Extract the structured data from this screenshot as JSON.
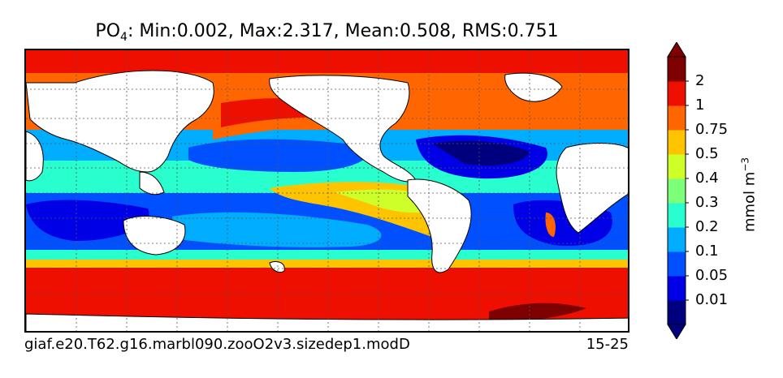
{
  "title": {
    "variable": "PO",
    "subscript": "4",
    "stats": ": Min:0.002, Max:2.317, Mean:0.508, RMS:0.751"
  },
  "footer": {
    "case_name": "giaf.e20.T62.g16.marbl090.zooO2v3.sizedep1.modD",
    "year_range": "15-25"
  },
  "colorbar": {
    "units_base": "mmol m",
    "units_exp": "−3",
    "tick_labels": [
      "0.01",
      "0.05",
      "0.1",
      "0.2",
      "0.3",
      "0.4",
      "0.5",
      "0.75",
      "1",
      "2"
    ],
    "colors": [
      "#00007f",
      "#0000e6",
      "#0050ff",
      "#00adff",
      "#29ffce",
      "#7dff7a",
      "#ceff29",
      "#ffc400",
      "#ff6600",
      "#ef0f00",
      "#7f0000"
    ],
    "extend": "both"
  }
}
